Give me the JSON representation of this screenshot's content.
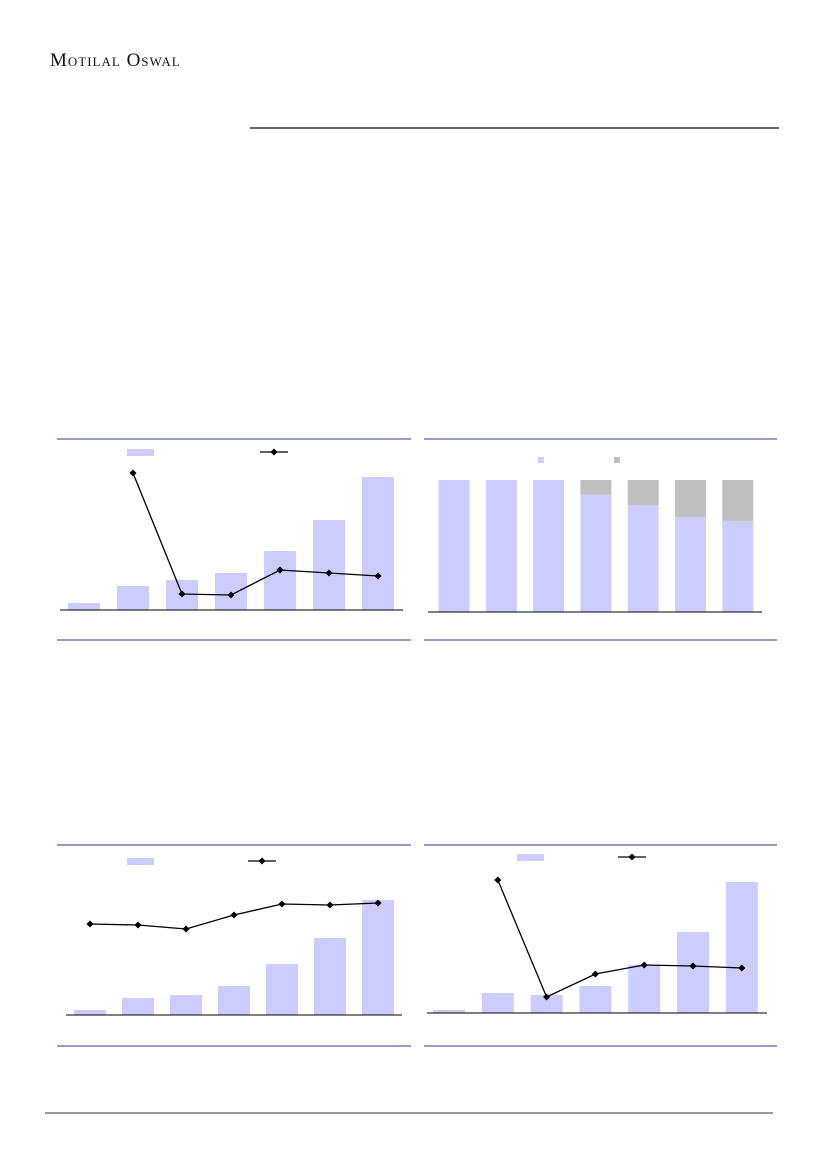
{
  "header": {
    "brand": "Motilal Oswal"
  },
  "chart_data": [
    {
      "type": "bar_line",
      "ylim": [
        0,
        140
      ],
      "series": [
        {
          "color": "#ccccff",
          "values": [
            7,
            24,
            30,
            37,
            59,
            90,
            133
          ]
        },
        {
          "color": "#000000",
          "values": [
            null,
            137,
            16,
            15,
            40,
            37,
            34
          ]
        }
      ]
    },
    {
      "type": "stacked_bar",
      "ylim": [
        0,
        100
      ],
      "series": [
        {
          "color": "#ccccff",
          "values": [
            100,
            100,
            100,
            89,
            81,
            72,
            69
          ]
        },
        {
          "color": "#bfbfbf",
          "values": [
            0,
            0,
            0,
            11,
            19,
            28,
            31
          ]
        }
      ]
    },
    {
      "type": "bar_line",
      "ylim": [
        0,
        140
      ],
      "series": [
        {
          "color": "#ccccff",
          "values": [
            5,
            17,
            20,
            29,
            51,
            77,
            115
          ]
        },
        {
          "color": "#000000",
          "values": [
            91,
            90,
            86,
            100,
            111,
            110,
            112
          ]
        }
      ]
    },
    {
      "type": "bar_line",
      "ylim": [
        0,
        140
      ],
      "series": [
        {
          "color": "#ccccff",
          "values": [
            3,
            20,
            18,
            27,
            48,
            81,
            131
          ]
        },
        {
          "color": "#000000",
          "values": [
            null,
            133,
            16,
            39,
            48,
            47,
            45
          ]
        }
      ]
    }
  ]
}
